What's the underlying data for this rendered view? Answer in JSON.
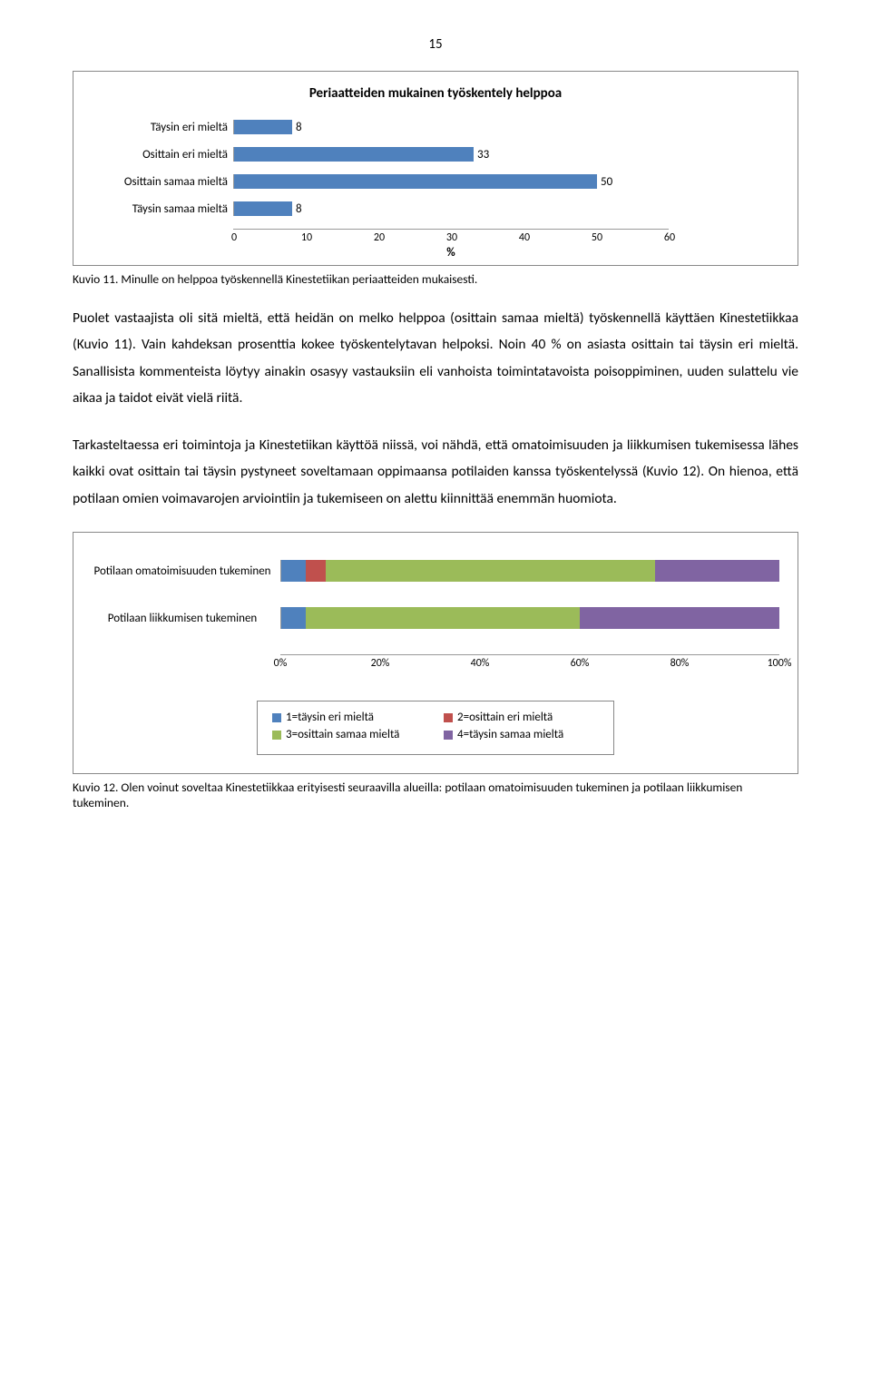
{
  "page_number": "15",
  "chart1": {
    "title": "Periaatteiden mukainen työskentely helppoa",
    "categories": [
      "Täysin eri mieltä",
      "Osittain eri mieltä",
      "Osittain samaa mieltä",
      "Täysin samaa mieltä"
    ],
    "values": [
      8,
      33,
      50,
      8
    ],
    "xmax": 60,
    "xticks": [
      0,
      10,
      20,
      30,
      40,
      50,
      60
    ],
    "xlabel": "%",
    "bar_color": "#4f81bd"
  },
  "caption1": "Kuvio 11. Minulle on helppoa työskennellä Kinestetiikan periaatteiden mukaisesti.",
  "para1": "Puolet vastaajista oli sitä mieltä, että heidän on melko helppoa (osittain samaa mieltä) työskennellä käyttäen Kinestetiikkaa (Kuvio 11). Vain kahdeksan prosenttia kokee työskentelytavan helpoksi. Noin 40 % on asiasta osittain tai täysin eri mieltä. Sanallisista kommenteista löytyy ainakin osasyy vastauksiin eli vanhoista toimintatavoista poisoppiminen, uuden sulattelu vie aikaa ja taidot eivät vielä riitä.",
  "para2": "Tarkasteltaessa eri toimintoja ja Kinestetiikan käyttöä niissä, voi nähdä, että omatoimisuuden ja liikkumisen tukemisessa lähes kaikki ovat osittain tai täysin pystyneet soveltamaan oppimaansa potilaiden kanssa työskentelyssä (Kuvio 12). On hienoa, että potilaan omien voimavarojen arviointiin ja tukemiseen on alettu kiinnittää enemmän huomiota.",
  "chart2": {
    "categories": [
      "Potilaan omatoimisuuden tukeminen",
      "Potilaan liikkumisen tukeminen"
    ],
    "series_colors": [
      "#4f81bd",
      "#c0504d",
      "#9bbb59",
      "#8064a2"
    ],
    "data": [
      [
        5,
        4,
        66,
        25
      ],
      [
        5,
        0,
        55,
        40
      ]
    ],
    "xticks": [
      "0%",
      "20%",
      "40%",
      "60%",
      "80%",
      "100%"
    ],
    "legend": [
      "1=täysin eri mieltä",
      "2=osittain eri mieltä",
      "3=osittain samaa mieltä",
      "4=täysin samaa mieltä"
    ]
  },
  "caption2": "Kuvio 12. Olen voinut soveltaa Kinestetiikkaa erityisesti seuraavilla alueilla: potilaan omatoimisuuden tukeminen ja potilaan liikkumisen tukeminen."
}
